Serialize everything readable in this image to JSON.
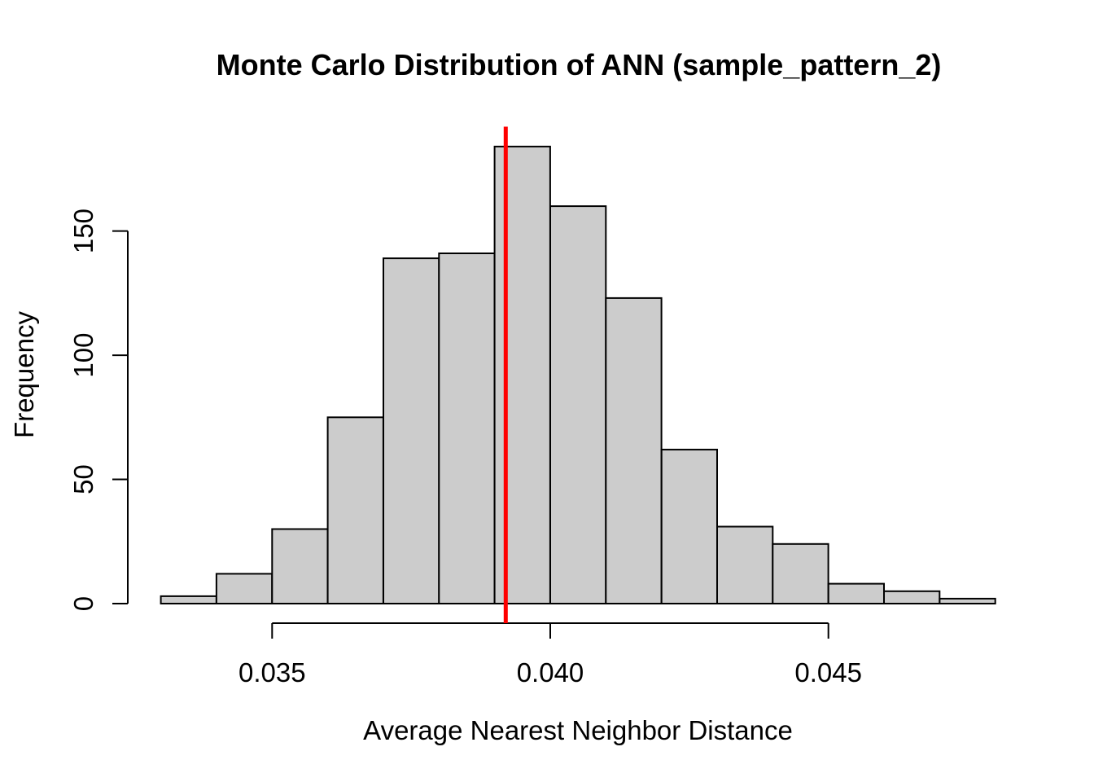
{
  "chart_data": {
    "type": "bar",
    "variant": "histogram",
    "title": "Monte Carlo Distribution of ANN (sample_pattern_2)",
    "xlabel": "Average Nearest Neighbor Distance",
    "ylabel": "Frequency",
    "bin_edges": [
      0.033,
      0.034,
      0.035,
      0.036,
      0.037,
      0.038,
      0.039,
      0.04,
      0.041,
      0.042,
      0.043,
      0.044,
      0.045,
      0.046,
      0.047,
      0.048
    ],
    "counts": [
      3,
      12,
      30,
      75,
      139,
      141,
      184,
      160,
      123,
      62,
      31,
      24,
      8,
      5,
      2
    ],
    "x_ticks": [
      0.035,
      0.04,
      0.045
    ],
    "x_tick_labels": [
      "0.035",
      "0.040",
      "0.045"
    ],
    "y_ticks": [
      0,
      50,
      100,
      150
    ],
    "y_tick_labels": [
      "0",
      "50",
      "100",
      "150"
    ],
    "xlim": [
      0.033,
      0.048
    ],
    "ylim": [
      0,
      192
    ],
    "observed_value": 0.0392,
    "grid": false,
    "legend": false,
    "colors": {
      "bar_fill": "#CCCCCC",
      "bar_stroke": "#000000",
      "observed_line": "#FF0000",
      "axis": "#000000",
      "text": "#000000",
      "background": "#FFFFFF"
    }
  }
}
